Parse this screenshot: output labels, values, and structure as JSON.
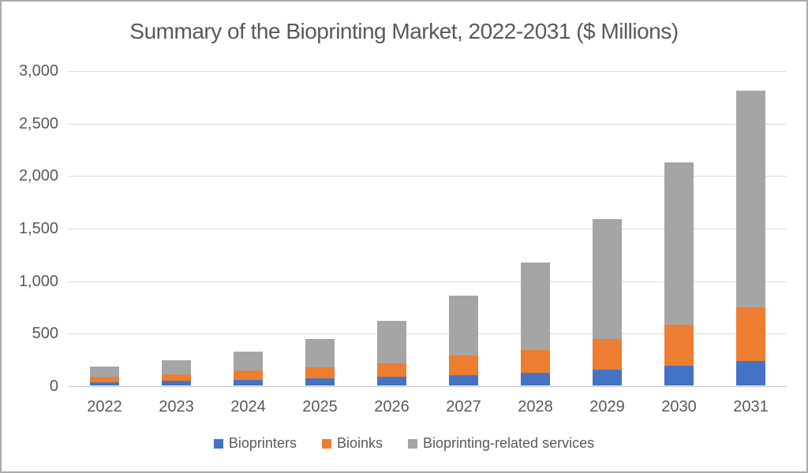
{
  "chart_data": {
    "type": "bar",
    "stacked": true,
    "title": "Summary of the Bioprinting Market, 2022-2031 ($ Millions)",
    "categories": [
      "2022",
      "2023",
      "2024",
      "2025",
      "2026",
      "2027",
      "2028",
      "2029",
      "2030",
      "2031"
    ],
    "series": [
      {
        "name": "Bioprinters",
        "color": "#4472C4",
        "values": [
          33,
          42,
          55,
          65,
          80,
          100,
          122,
          153,
          185,
          230
        ]
      },
      {
        "name": "Bioinks",
        "color": "#ED7D31",
        "values": [
          48,
          62,
          90,
          108,
          130,
          183,
          218,
          287,
          392,
          510
        ]
      },
      {
        "name": "Bioprinting-related services",
        "color": "#A5A5A5",
        "values": [
          97,
          133,
          175,
          272,
          405,
          572,
          830,
          1145,
          1545,
          2065
        ]
      }
    ],
    "totals": [
      178,
      237,
      320,
      445,
      615,
      855,
      1170,
      1585,
      2122,
      2805
    ],
    "xlabel": "",
    "ylabel": "",
    "ylim": [
      0,
      3000
    ],
    "ytick_step": 500,
    "ytick_labels": [
      "0",
      "500",
      "1,000",
      "1,500",
      "2,000",
      "2,500",
      "3,000"
    ],
    "grid": true,
    "legend_position": "bottom"
  },
  "colors": {
    "text": "#595959",
    "gridline": "#d9d9d9",
    "axis_line": "#c0c0c0",
    "canvas_border": "#ababab",
    "background": "#ffffff"
  }
}
